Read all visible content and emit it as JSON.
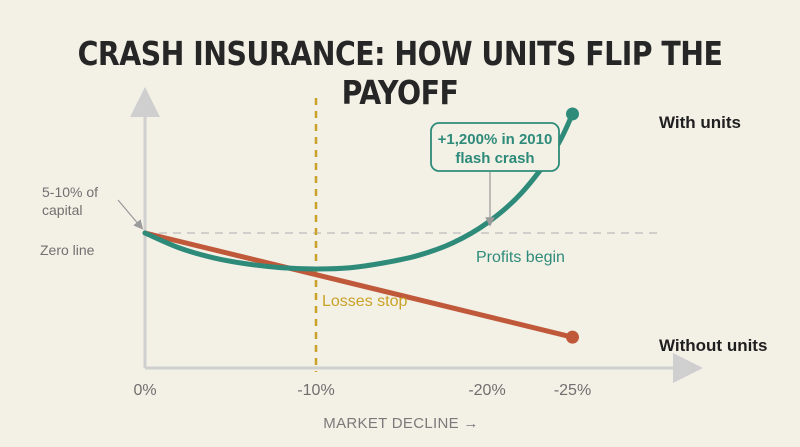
{
  "title": "CRASH INSURANCE: HOW UNITS FLIP THE PAYOFF",
  "colors": {
    "with_units": "#2e8b7a",
    "without_units": "#c0583a",
    "threshold": "#c9a227",
    "zero_line": "#c4c4c4",
    "axis": "#cfcfcf"
  },
  "chart_data": {
    "type": "line",
    "xlabel": "MARKET DECLINE →",
    "ylabel": "",
    "x_ticks": [
      "0%",
      "-10%",
      "-20%",
      "-25%"
    ],
    "x_tick_values": [
      0,
      -10,
      -20,
      -25
    ],
    "grid": false,
    "series": [
      {
        "name": "With units",
        "color": "#2e8b7a",
        "x": [
          0,
          -2,
          -4,
          -6,
          -8,
          -10,
          -12,
          -14,
          -16,
          -18,
          -20,
          -22,
          -24,
          -25
        ],
        "y": [
          0,
          -1.2,
          -2.0,
          -2.5,
          -2.8,
          -2.9,
          -2.8,
          -2.4,
          -1.8,
          -0.8,
          0.8,
          3.2,
          6.8,
          9.6
        ]
      },
      {
        "name": "Without units",
        "color": "#c0583a",
        "x": [
          0,
          -25
        ],
        "y": [
          0,
          -8.4
        ]
      }
    ],
    "annotations": {
      "threshold_label": "Losses stop",
      "profit_label": "Profits begin",
      "zero_label": "Zero line",
      "cost_label_line1": "5-10% of",
      "cost_label_line2": "capital",
      "callout_line1": "+1,200% in 2010",
      "callout_line2": "flash crash"
    }
  }
}
